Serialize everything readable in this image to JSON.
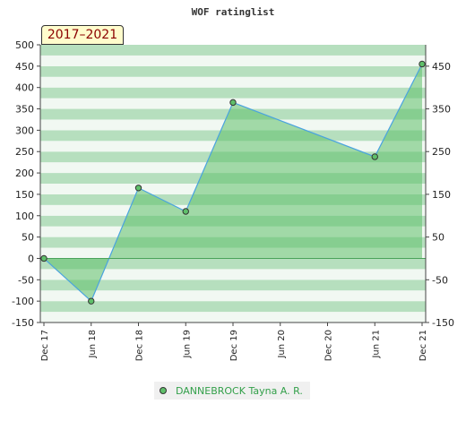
{
  "chart_data": {
    "type": "area",
    "title": "WOF ratinglist",
    "period_label": "2017–2021",
    "x_labels": [
      "Dec 17",
      "Jun 18",
      "Dec 18",
      "Jun 19",
      "Dec 19",
      "Jun 20",
      "Dec 20",
      "Jun 21",
      "Dec 21"
    ],
    "series": [
      {
        "name": "DANNEBROCK Tayna A. R.",
        "points": [
          {
            "x": "Dec 17",
            "y": 0
          },
          {
            "x": "Jun 18",
            "y": -100
          },
          {
            "x": "Dec 18",
            "y": 165
          },
          {
            "x": "Jun 19",
            "y": 110
          },
          {
            "x": "Dec 19",
            "y": 365
          },
          {
            "x": "Jun 21",
            "y": 238
          },
          {
            "x": "Dec 21",
            "y": 455
          }
        ]
      }
    ],
    "ylim": [
      -150,
      500
    ],
    "left_ticks": [
      500,
      450,
      400,
      350,
      300,
      250,
      200,
      150,
      100,
      50,
      0,
      -50,
      -100,
      -150
    ],
    "right_ticks": [
      450,
      350,
      250,
      150,
      50,
      -50,
      -150
    ],
    "grid": true,
    "legend_position": "bottom-center",
    "colors": {
      "fill": "#5fbf6a",
      "line": "#4aa3df",
      "marker": "#5fbf6a",
      "band_light": "#f1f8f2",
      "band_dark": "#b6dfbe",
      "legend_text": "#33a04a",
      "period_text": "#8b0000",
      "period_bg": "#fffccc"
    }
  }
}
